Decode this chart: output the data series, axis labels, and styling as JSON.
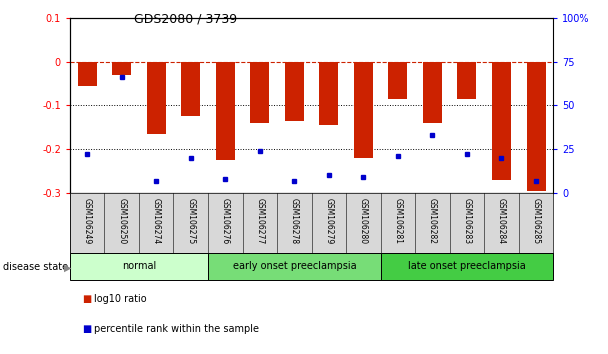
{
  "title": "GDS2080 / 3739",
  "samples": [
    "GSM106249",
    "GSM106250",
    "GSM106274",
    "GSM106275",
    "GSM106276",
    "GSM106277",
    "GSM106278",
    "GSM106279",
    "GSM106280",
    "GSM106281",
    "GSM106282",
    "GSM106283",
    "GSM106284",
    "GSM106285"
  ],
  "log10_ratio": [
    -0.055,
    -0.03,
    -0.165,
    -0.125,
    -0.225,
    -0.14,
    -0.135,
    -0.145,
    -0.22,
    -0.085,
    -0.14,
    -0.085,
    -0.27,
    -0.295
  ],
  "percentile_rank": [
    22,
    66,
    7,
    20,
    8,
    24,
    7,
    10,
    9,
    21,
    33,
    22,
    20,
    7
  ],
  "ylim_left": [
    -0.3,
    0.1
  ],
  "ylim_right": [
    0,
    100
  ],
  "yticks_left": [
    -0.3,
    -0.2,
    -0.1,
    0,
    0.1
  ],
  "yticks_right": [
    0,
    25,
    50,
    75,
    100
  ],
  "ytick_labels_right": [
    "0",
    "25",
    "50",
    "75",
    "100%"
  ],
  "groups": [
    {
      "label": "normal",
      "start": 0,
      "end": 4,
      "color": "#ccffcc"
    },
    {
      "label": "early onset preeclampsia",
      "start": 4,
      "end": 9,
      "color": "#77dd77"
    },
    {
      "label": "late onset preeclampsia",
      "start": 9,
      "end": 14,
      "color": "#44cc44"
    }
  ],
  "bar_color": "#cc2200",
  "dot_color": "#0000cc",
  "dashed_line_color": "#cc2200",
  "dotted_line_color": "#000000",
  "legend_red_label": "log10 ratio",
  "legend_blue_label": "percentile rank within the sample",
  "disease_state_label": "disease state",
  "background_color": "#ffffff",
  "bar_width": 0.55
}
